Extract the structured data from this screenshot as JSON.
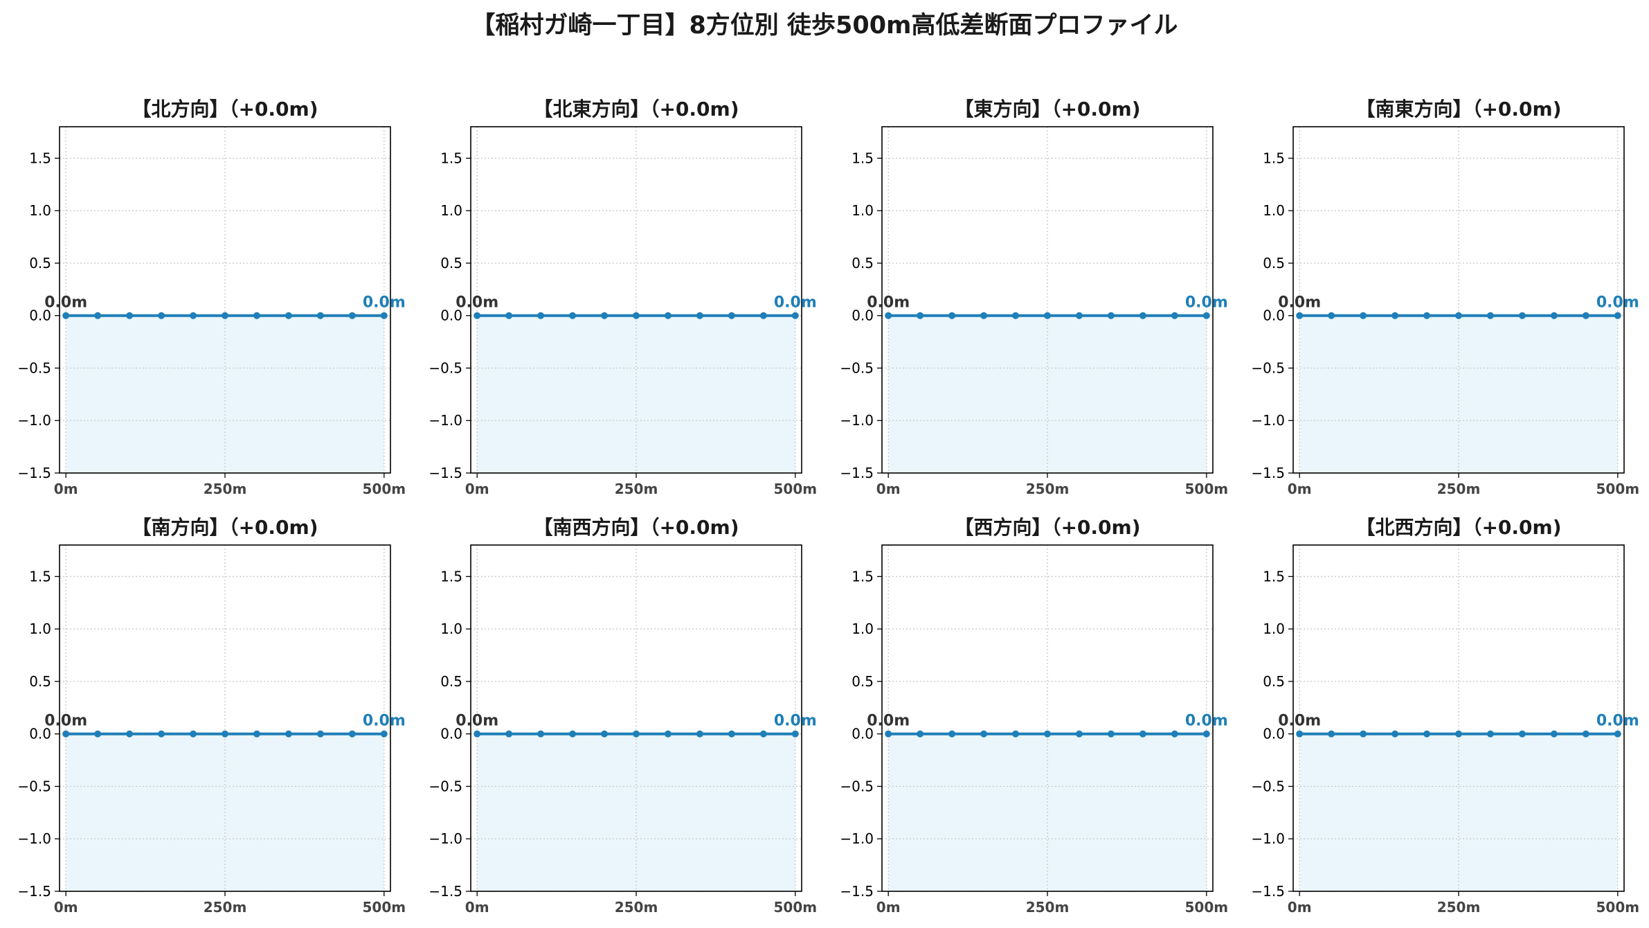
{
  "title": "【稲村ガ崎一丁目】8方位別 徒歩500m高低差断面プロファイル",
  "chart_data": [
    {
      "type": "area",
      "title": "【北方向】（+0.0m)",
      "x": [
        0,
        50,
        100,
        150,
        200,
        250,
        300,
        350,
        400,
        450,
        500
      ],
      "y": [
        0,
        0,
        0,
        0,
        0,
        0,
        0,
        0,
        0,
        0,
        0
      ],
      "xlim": [
        -10,
        510
      ],
      "ylim": [
        -1.5,
        1.8
      ],
      "xticks": [
        "0m",
        "250m",
        "500m"
      ],
      "yticks": [
        "−1.5",
        "−1.0",
        "−0.5",
        "0.0",
        "0.5",
        "1.0",
        "1.5"
      ],
      "start_label": "0.0m",
      "end_label": "0.0m",
      "grid": true
    },
    {
      "type": "area",
      "title": "【北東方向】（+0.0m)",
      "x": [
        0,
        50,
        100,
        150,
        200,
        250,
        300,
        350,
        400,
        450,
        500
      ],
      "y": [
        0,
        0,
        0,
        0,
        0,
        0,
        0,
        0,
        0,
        0,
        0
      ],
      "xlim": [
        -10,
        510
      ],
      "ylim": [
        -1.5,
        1.8
      ],
      "xticks": [
        "0m",
        "250m",
        "500m"
      ],
      "yticks": [
        "−1.5",
        "−1.0",
        "−0.5",
        "0.0",
        "0.5",
        "1.0",
        "1.5"
      ],
      "start_label": "0.0m",
      "end_label": "0.0m",
      "grid": true
    },
    {
      "type": "area",
      "title": "【東方向】（+0.0m)",
      "x": [
        0,
        50,
        100,
        150,
        200,
        250,
        300,
        350,
        400,
        450,
        500
      ],
      "y": [
        0,
        0,
        0,
        0,
        0,
        0,
        0,
        0,
        0,
        0,
        0
      ],
      "xlim": [
        -10,
        510
      ],
      "ylim": [
        -1.5,
        1.8
      ],
      "xticks": [
        "0m",
        "250m",
        "500m"
      ],
      "yticks": [
        "−1.5",
        "−1.0",
        "−0.5",
        "0.0",
        "0.5",
        "1.0",
        "1.5"
      ],
      "start_label": "0.0m",
      "end_label": "0.0m",
      "grid": true
    },
    {
      "type": "area",
      "title": "【南東方向】（+0.0m)",
      "x": [
        0,
        50,
        100,
        150,
        200,
        250,
        300,
        350,
        400,
        450,
        500
      ],
      "y": [
        0,
        0,
        0,
        0,
        0,
        0,
        0,
        0,
        0,
        0,
        0
      ],
      "xlim": [
        -10,
        510
      ],
      "ylim": [
        -1.5,
        1.8
      ],
      "xticks": [
        "0m",
        "250m",
        "500m"
      ],
      "yticks": [
        "−1.5",
        "−1.0",
        "−0.5",
        "0.0",
        "0.5",
        "1.0",
        "1.5"
      ],
      "start_label": "0.0m",
      "end_label": "0.0m",
      "grid": true
    },
    {
      "type": "area",
      "title": "【南方向】（+0.0m)",
      "x": [
        0,
        50,
        100,
        150,
        200,
        250,
        300,
        350,
        400,
        450,
        500
      ],
      "y": [
        0,
        0,
        0,
        0,
        0,
        0,
        0,
        0,
        0,
        0,
        0
      ],
      "xlim": [
        -10,
        510
      ],
      "ylim": [
        -1.5,
        1.8
      ],
      "xticks": [
        "0m",
        "250m",
        "500m"
      ],
      "yticks": [
        "−1.5",
        "−1.0",
        "−0.5",
        "0.0",
        "0.5",
        "1.0",
        "1.5"
      ],
      "start_label": "0.0m",
      "end_label": "0.0m",
      "grid": true
    },
    {
      "type": "area",
      "title": "【南西方向】（+0.0m)",
      "x": [
        0,
        50,
        100,
        150,
        200,
        250,
        300,
        350,
        400,
        450,
        500
      ],
      "y": [
        0,
        0,
        0,
        0,
        0,
        0,
        0,
        0,
        0,
        0,
        0
      ],
      "xlim": [
        -10,
        510
      ],
      "ylim": [
        -1.5,
        1.8
      ],
      "xticks": [
        "0m",
        "250m",
        "500m"
      ],
      "yticks": [
        "−1.5",
        "−1.0",
        "−0.5",
        "0.0",
        "0.5",
        "1.0",
        "1.5"
      ],
      "start_label": "0.0m",
      "end_label": "0.0m",
      "grid": true
    },
    {
      "type": "area",
      "title": "【西方向】（+0.0m)",
      "x": [
        0,
        50,
        100,
        150,
        200,
        250,
        300,
        350,
        400,
        450,
        500
      ],
      "y": [
        0,
        0,
        0,
        0,
        0,
        0,
        0,
        0,
        0,
        0,
        0
      ],
      "xlim": [
        -10,
        510
      ],
      "ylim": [
        -1.5,
        1.8
      ],
      "xticks": [
        "0m",
        "250m",
        "500m"
      ],
      "yticks": [
        "−1.5",
        "−1.0",
        "−0.5",
        "0.0",
        "0.5",
        "1.0",
        "1.5"
      ],
      "start_label": "0.0m",
      "end_label": "0.0m",
      "grid": true
    },
    {
      "type": "area",
      "title": "【北西方向】（+0.0m)",
      "x": [
        0,
        50,
        100,
        150,
        200,
        250,
        300,
        350,
        400,
        450,
        500
      ],
      "y": [
        0,
        0,
        0,
        0,
        0,
        0,
        0,
        0,
        0,
        0,
        0
      ],
      "xlim": [
        -10,
        510
      ],
      "ylim": [
        -1.5,
        1.8
      ],
      "xticks": [
        "0m",
        "250m",
        "500m"
      ],
      "yticks": [
        "−1.5",
        "−1.0",
        "−0.5",
        "0.0",
        "0.5",
        "1.0",
        "1.5"
      ],
      "start_label": "0.0m",
      "end_label": "0.0m",
      "grid": true
    }
  ],
  "colors": {
    "line": "#1f7fb8",
    "fill": "#eaf6fb",
    "grid": "#c8c8c8",
    "end_label": "#1f7fb8",
    "start_label": "#333333"
  }
}
